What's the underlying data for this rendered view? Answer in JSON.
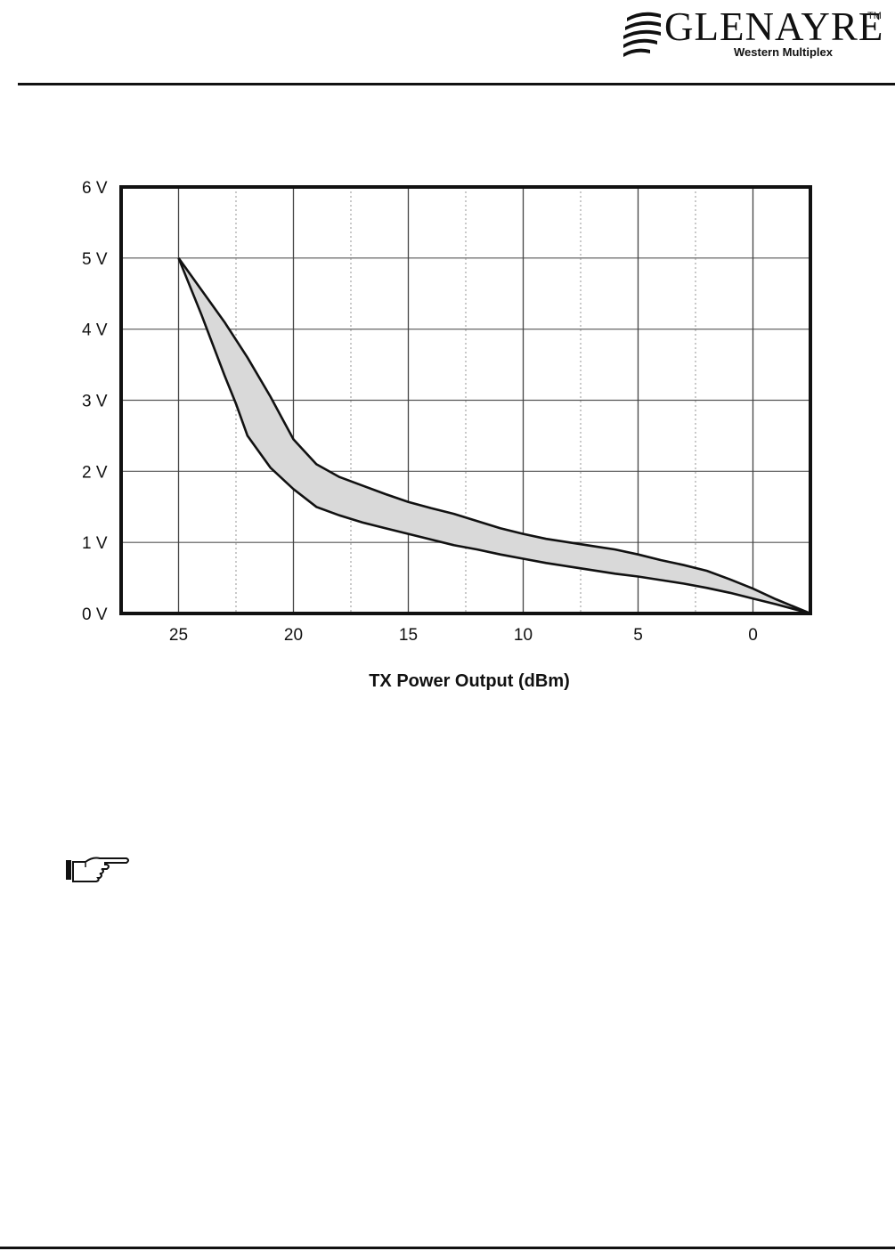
{
  "header": {
    "brand_name": "GLENAYRE",
    "brand_tm": "TM",
    "brand_sub": "Western Multiplex"
  },
  "chart_data": {
    "type": "area",
    "title": "",
    "xlabel": "TX Power Output (dBm)",
    "ylabel": "",
    "x_ticks": [
      25,
      20,
      15,
      10,
      5,
      0
    ],
    "y_ticks": [
      "0 V",
      "1 V",
      "2 V",
      "3 V",
      "4 V",
      "5 V",
      "6 V"
    ],
    "xlim": [
      27.5,
      -2.5
    ],
    "ylim": [
      0,
      6
    ],
    "x_reversed": true,
    "grid": true,
    "fill_color": "#d9d9d9",
    "series": [
      {
        "x": [
          25,
          24,
          23,
          22,
          21,
          20.5,
          20,
          19,
          18,
          17,
          16,
          15,
          14,
          13,
          12,
          11,
          10,
          9,
          8,
          7,
          6,
          5,
          4,
          3,
          2,
          1,
          0,
          -1,
          -2.5
        ],
        "y": [
          5.0,
          4.55,
          4.1,
          3.6,
          3.05,
          2.75,
          2.45,
          2.1,
          1.92,
          1.8,
          1.68,
          1.57,
          1.48,
          1.4,
          1.3,
          1.2,
          1.12,
          1.05,
          1.0,
          0.95,
          0.9,
          0.83,
          0.75,
          0.68,
          0.6,
          0.48,
          0.35,
          0.2,
          0.0
        ]
      },
      {
        "x": [
          25,
          24,
          23,
          22.5,
          22,
          21,
          20,
          19,
          18,
          17,
          16,
          15,
          14,
          13,
          12,
          11,
          10,
          9,
          8,
          7,
          6,
          5,
          4,
          3,
          2,
          1,
          0,
          -1,
          -2.5
        ],
        "y": [
          5.0,
          4.2,
          3.35,
          2.95,
          2.5,
          2.05,
          1.75,
          1.5,
          1.38,
          1.28,
          1.2,
          1.12,
          1.04,
          0.96,
          0.9,
          0.83,
          0.77,
          0.71,
          0.66,
          0.61,
          0.56,
          0.52,
          0.47,
          0.42,
          0.36,
          0.29,
          0.21,
          0.13,
          0.0
        ]
      }
    ]
  },
  "note": {
    "icon": "pointing-hand-icon"
  }
}
